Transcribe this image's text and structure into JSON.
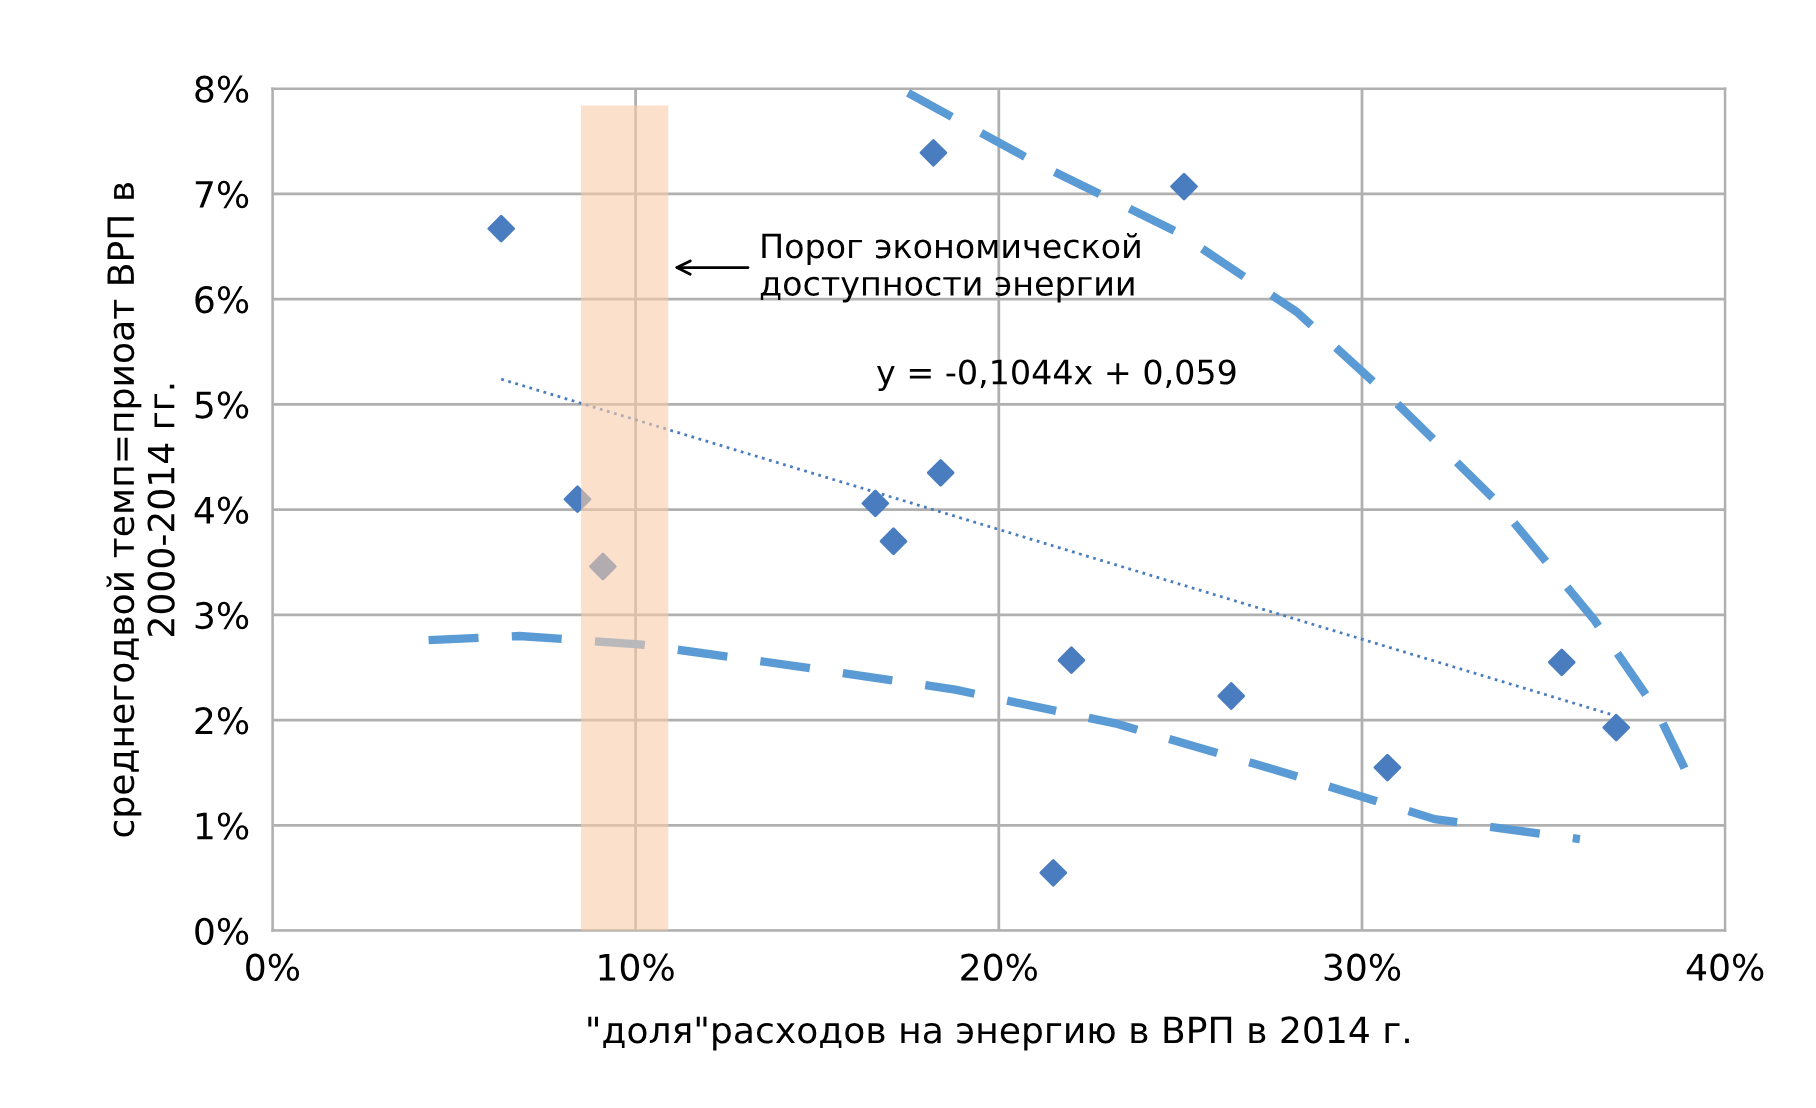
{
  "chart_data": {
    "type": "scatter",
    "xlabel": "\"доля\"расходов на энергию в ВРП в 2014 г.",
    "ylabel": "среднегодвой темп=приоат ВРП в\n2000-2014 гг.",
    "xlim": [
      0,
      40
    ],
    "ylim": [
      0,
      8
    ],
    "xticks": [
      {
        "value": 0,
        "label": "0%"
      },
      {
        "value": 10,
        "label": "10%"
      },
      {
        "value": 20,
        "label": "20%"
      },
      {
        "value": 30,
        "label": "30%"
      },
      {
        "value": 40,
        "label": "40%"
      }
    ],
    "yticks": [
      {
        "value": 0,
        "label": "0%"
      },
      {
        "value": 1,
        "label": "1%"
      },
      {
        "value": 2,
        "label": "2%"
      },
      {
        "value": 3,
        "label": "3%"
      },
      {
        "value": 4,
        "label": "4%"
      },
      {
        "value": 5,
        "label": "5%"
      },
      {
        "value": 6,
        "label": "6%"
      },
      {
        "value": 7,
        "label": "7%"
      },
      {
        "value": 8,
        "label": "8%"
      }
    ],
    "grid": true,
    "legend": false,
    "series": [
      {
        "marker": "diamond",
        "color": "#4a7dbf",
        "x": [
          6.3,
          8.4,
          9.1,
          18.2,
          25.1,
          16.6,
          17.1,
          18.4,
          22.0,
          26.4,
          21.5,
          30.7,
          35.5,
          37.0
        ],
        "values": [
          6.67,
          4.1,
          3.46,
          7.39,
          7.07,
          4.06,
          3.7,
          4.35,
          2.57,
          2.23,
          0.55,
          1.55,
          2.55,
          1.93
        ]
      },
      {
        "type": "line",
        "line_style": "dotted",
        "color": "#4a7dbf",
        "x": [
          6.3,
          37.0
        ],
        "values": [
          5.24,
          2.04
        ]
      },
      {
        "type": "line",
        "line_style": "dashed",
        "color": "#5b9bd5",
        "x": [
          17.5,
          21.0,
          24.9,
          28.2,
          30.9,
          33.7,
          36.4,
          38.1,
          38.9
        ],
        "values": [
          7.96,
          7.3,
          6.64,
          5.88,
          5.03,
          4.08,
          2.95,
          2.1,
          1.53
        ]
      },
      {
        "type": "line",
        "line_style": "dashed",
        "color": "#5b9bd5",
        "x": [
          4.3,
          6.8,
          10.1,
          14.5,
          18.8,
          23.2,
          27.6,
          32.0,
          36.0
        ],
        "values": [
          2.76,
          2.8,
          2.72,
          2.51,
          2.29,
          1.97,
          1.53,
          1.06,
          0.87
        ]
      }
    ],
    "bands": [
      {
        "axis": "x",
        "from": 8.5,
        "to": 10.9,
        "label": "Порог экономической\nдоступности энергии",
        "color": "#f8cba8"
      }
    ],
    "annotations": [
      "y = -0,1044x + 0,059"
    ]
  }
}
